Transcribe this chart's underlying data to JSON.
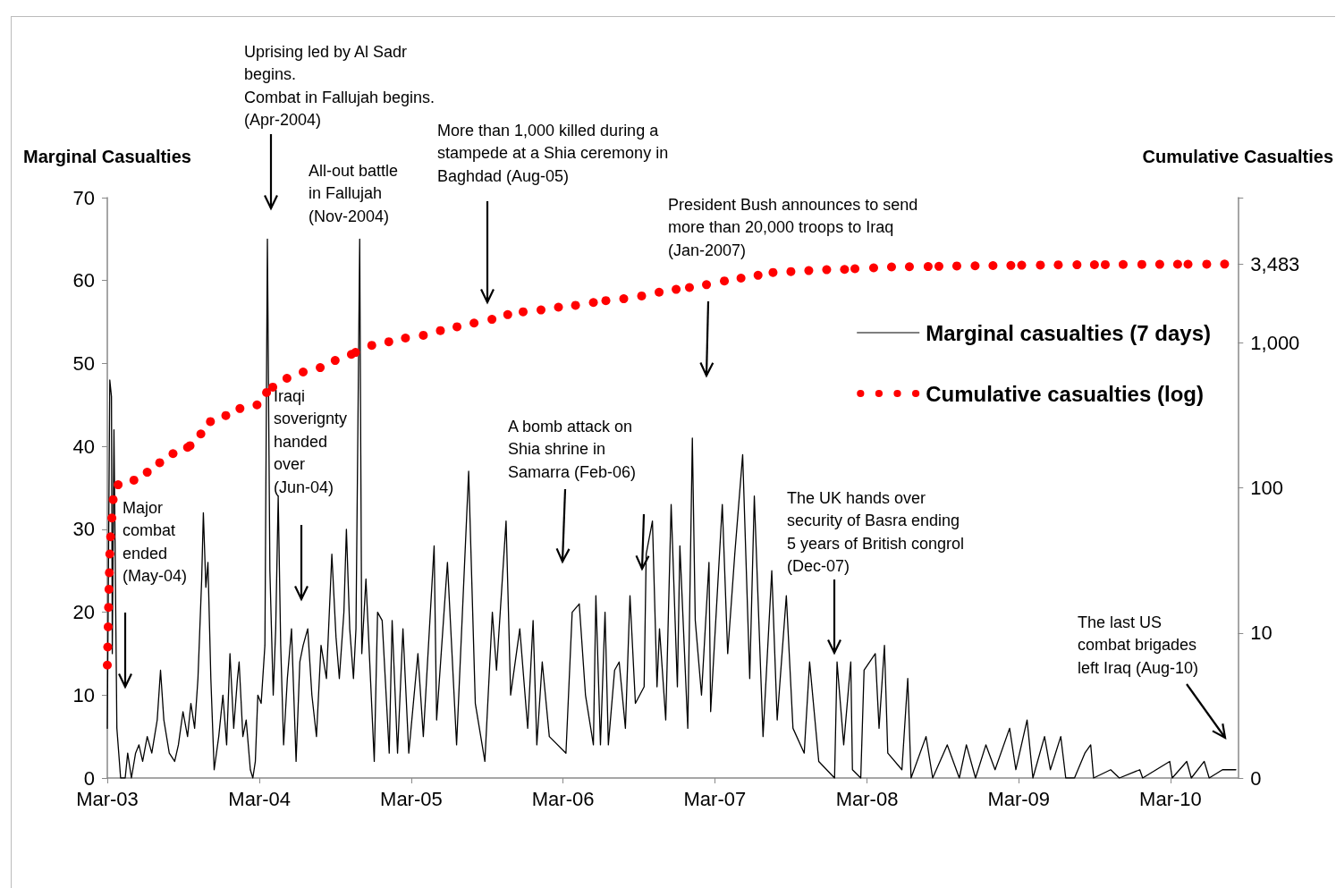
{
  "chart_data": {
    "type": "line",
    "ylabel": "Marginal Casualties",
    "y2label": "Cumulative Casualties",
    "xlim": [
      "2003-03-01",
      "2010-08-10"
    ],
    "xticks": [
      {
        "value": "2003-03-01",
        "label": "Mar-03"
      },
      {
        "value": "2004-03-01",
        "label": "Mar-04"
      },
      {
        "value": "2005-03-01",
        "label": "Mar-05"
      },
      {
        "value": "2006-03-01",
        "label": "Mar-06"
      },
      {
        "value": "2007-03-01",
        "label": "Mar-07"
      },
      {
        "value": "2008-03-01",
        "label": "Mar-08"
      },
      {
        "value": "2009-03-01",
        "label": "Mar-09"
      },
      {
        "value": "2010-03-01",
        "label": "Mar-10"
      }
    ],
    "ylim": [
      0,
      70
    ],
    "yticks": [
      0,
      10,
      20,
      30,
      40,
      50,
      60,
      70
    ],
    "y2lim": [
      0,
      10000
    ],
    "y2ticks": [
      0,
      10,
      100,
      {
        "value": 1000,
        "label": "1,000"
      },
      {
        "value": 3483,
        "label": "3,483"
      },
      {
        "value": 10000,
        "label": null
      }
    ],
    "log": "y2",
    "grid": false,
    "legend": "right",
    "line_style": "solid",
    "series": [
      {
        "name": "Marginal casualties (7 days)",
        "color": "#000000",
        "marker": "none",
        "x": [
          "2003-03-01",
          "2003-03-07",
          "2003-03-11",
          "2003-03-13",
          "2003-03-17",
          "2003-03-24",
          "2003-04-02",
          "2003-04-13",
          "2003-04-19",
          "2003-04-28",
          "2003-05-08",
          "2003-05-16",
          "2003-05-25",
          "2003-06-05",
          "2003-06-16",
          "2003-06-29",
          "2003-07-07",
          "2003-07-15",
          "2003-07-28",
          "2003-08-10",
          "2003-08-19",
          "2003-08-30",
          "2003-09-10",
          "2003-09-18",
          "2003-09-27",
          "2003-10-05",
          "2003-10-14",
          "2003-10-18",
          "2003-10-24",
          "2003-10-29",
          "2003-11-05",
          "2003-11-13",
          "2003-11-24",
          "2003-12-04",
          "2003-12-13",
          "2003-12-21",
          "2003-12-30",
          "2004-01-08",
          "2004-01-12",
          "2004-01-21",
          "2004-01-29",
          "2004-02-08",
          "2004-02-14",
          "2004-02-20",
          "2004-02-26",
          "2004-03-05",
          "2004-03-14",
          "2004-03-20",
          "2004-03-26",
          "2004-04-03",
          "2004-04-09",
          "2004-04-15",
          "2004-04-21",
          "2004-04-28",
          "2004-05-07",
          "2004-05-17",
          "2004-05-28",
          "2004-06-06",
          "2004-06-14",
          "2004-06-25",
          "2004-07-05",
          "2004-07-16",
          "2004-07-27",
          "2004-08-09",
          "2004-08-22",
          "2004-09-01",
          "2004-09-09",
          "2004-09-20",
          "2004-09-26",
          "2004-10-04",
          "2004-10-13",
          "2004-10-19",
          "2004-10-28",
          "2004-11-02",
          "2004-11-12",
          "2004-12-02",
          "2004-12-10",
          "2004-12-21",
          "2005-01-07",
          "2005-01-14",
          "2005-01-27",
          "2005-02-09",
          "2005-02-23",
          "2005-03-17",
          "2005-03-30",
          "2005-04-25",
          "2005-05-01",
          "2005-05-27",
          "2005-06-18",
          "2005-07-17",
          "2005-08-02",
          "2005-08-25",
          "2005-09-12",
          "2005-09-22",
          "2005-10-15",
          "2005-10-26",
          "2005-11-17",
          "2005-12-06",
          "2005-12-19",
          "2005-12-28",
          "2006-01-10",
          "2006-01-27",
          "2006-03-08",
          "2006-03-23",
          "2006-04-09",
          "2006-04-24",
          "2006-05-13",
          "2006-05-19",
          "2006-05-30",
          "2006-06-10",
          "2006-06-18",
          "2006-07-03",
          "2006-07-14",
          "2006-07-29",
          "2006-08-09",
          "2006-08-22",
          "2006-09-12",
          "2006-09-17",
          "2006-10-02",
          "2006-10-13",
          "2006-10-19",
          "2006-11-03",
          "2006-11-16",
          "2006-12-01",
          "2006-12-07",
          "2006-12-26",
          "2007-01-06",
          "2007-01-13",
          "2007-01-28",
          "2007-02-15",
          "2007-02-19",
          "2007-03-19",
          "2007-04-01",
          "2007-04-18",
          "2007-05-07",
          "2007-05-24",
          "2007-06-04",
          "2007-06-25",
          "2007-07-16",
          "2007-07-29",
          "2007-08-20",
          "2007-09-05",
          "2007-10-02",
          "2007-10-15",
          "2007-11-06",
          "2007-12-14",
          "2007-12-20",
          "2008-01-05",
          "2008-01-22",
          "2008-01-26",
          "2008-02-15",
          "2008-02-23",
          "2008-03-21",
          "2008-03-30",
          "2008-04-12",
          "2008-04-20",
          "2008-05-24",
          "2008-06-07",
          "2008-06-15",
          "2008-07-21",
          "2008-08-06",
          "2008-09-10",
          "2008-10-09",
          "2008-10-26",
          "2008-11-17",
          "2008-12-12",
          "2009-01-03",
          "2009-02-07",
          "2009-02-22",
          "2009-03-21",
          "2009-04-04",
          "2009-05-02",
          "2009-05-16",
          "2009-06-10",
          "2009-06-22",
          "2009-07-13",
          "2009-08-07",
          "2009-08-21",
          "2009-08-28",
          "2009-10-08",
          "2009-10-29",
          "2009-12-17",
          "2009-12-24",
          "2010-02-27",
          "2010-03-05",
          "2010-04-09",
          "2010-04-20",
          "2010-05-21",
          "2010-06-02",
          "2010-07-04",
          "2010-08-05"
        ],
        "values": [
          6,
          48,
          46,
          15,
          42,
          6,
          0,
          0,
          3,
          0,
          3,
          4,
          2,
          5,
          3,
          7,
          13,
          7,
          3,
          2,
          4,
          8,
          5,
          9,
          6,
          12,
          24,
          32,
          23,
          26,
          12,
          1,
          5,
          10,
          4,
          15,
          6,
          12,
          14,
          5,
          7,
          1,
          0,
          2,
          10,
          9,
          16,
          65,
          25,
          10,
          18,
          34,
          16,
          4,
          12,
          18,
          2,
          14,
          16,
          18,
          10,
          5,
          16,
          12,
          27,
          17,
          12,
          20,
          30,
          18,
          12,
          18,
          65,
          15,
          24,
          2,
          20,
          19,
          3,
          19,
          3,
          18,
          3,
          15,
          5,
          28,
          7,
          26,
          4,
          37,
          9,
          2,
          20,
          13,
          31,
          10,
          18,
          6,
          19,
          4,
          14,
          5,
          3,
          20,
          21,
          10,
          4,
          22,
          4,
          20,
          4,
          13,
          14,
          6,
          22,
          9,
          11,
          27,
          31,
          11,
          18,
          7,
          33,
          11,
          28,
          6,
          41,
          19,
          10,
          26,
          8,
          33,
          15,
          27,
          39,
          12,
          34,
          5,
          25,
          7,
          22,
          6,
          3,
          14,
          2,
          0,
          14,
          4,
          14,
          1,
          0,
          13,
          15,
          6,
          16,
          3,
          1,
          12,
          0,
          5,
          0,
          4,
          0,
          4,
          0,
          4,
          1,
          6,
          1,
          7,
          0,
          5,
          1,
          5,
          0,
          0,
          3,
          4,
          0,
          1,
          0,
          1,
          0,
          2,
          0,
          2,
          0,
          2,
          0,
          1,
          1
        ]
      },
      {
        "name": "Cumulative casualties (log)",
        "type": "scatter",
        "axis": "y2",
        "color": "#ff0000",
        "marker": "circle",
        "x": [
          "2003-03-01",
          "2003-03-02",
          "2003-03-03",
          "2003-03-04",
          "2003-03-05",
          "2003-03-06",
          "2003-03-07",
          "2003-03-09",
          "2003-03-12",
          "2003-03-15",
          "2003-03-27",
          "2003-05-04",
          "2003-06-05",
          "2003-07-05",
          "2003-08-06",
          "2003-09-10",
          "2003-09-16",
          "2003-10-12",
          "2003-11-04",
          "2003-12-11",
          "2004-01-14",
          "2004-02-24",
          "2004-03-18",
          "2004-04-02",
          "2004-05-06",
          "2004-06-14",
          "2004-07-25",
          "2004-08-30",
          "2004-10-08",
          "2004-10-18",
          "2004-11-26",
          "2005-01-06",
          "2005-02-15",
          "2005-03-30",
          "2005-05-10",
          "2005-06-19",
          "2005-07-30",
          "2005-09-11",
          "2005-10-19",
          "2005-11-25",
          "2006-01-07",
          "2006-02-18",
          "2006-03-31",
          "2006-05-13",
          "2006-06-12",
          "2006-07-25",
          "2006-09-06",
          "2006-10-18",
          "2006-11-28",
          "2006-12-30",
          "2007-02-09",
          "2007-03-24",
          "2007-05-03",
          "2007-06-13",
          "2007-07-19",
          "2007-08-31",
          "2007-10-13",
          "2007-11-25",
          "2008-01-07",
          "2008-02-01",
          "2008-03-17",
          "2008-04-29",
          "2008-06-11",
          "2008-07-26",
          "2008-08-21",
          "2008-10-03",
          "2008-11-16",
          "2008-12-29",
          "2009-02-10",
          "2009-03-08",
          "2009-04-22",
          "2009-06-04",
          "2009-07-19",
          "2009-08-30",
          "2009-09-25",
          "2009-11-07",
          "2009-12-22",
          "2010-02-03",
          "2010-03-18",
          "2010-04-12",
          "2010-05-27",
          "2010-07-09"
        ],
        "values": [
          6,
          8,
          11,
          15,
          20,
          26,
          35,
          46,
          62,
          83,
          105,
          113,
          128,
          149,
          172,
          190,
          195,
          235,
          286,
          315,
          352,
          373,
          454,
          494,
          569,
          628,
          674,
          755,
          832,
          857,
          959,
          1015,
          1077,
          1126,
          1213,
          1288,
          1366,
          1449,
          1562,
          1633,
          1682,
          1758,
          1811,
          1894,
          1950,
          2010,
          2102,
          2230,
          2331,
          2403,
          2513,
          2667,
          2789,
          2915,
          3050,
          3093,
          3140,
          3186,
          3200,
          3236,
          3284,
          3330,
          3340,
          3350,
          3360,
          3380,
          3390,
          3400,
          3410,
          3420,
          3430,
          3440,
          3445,
          3450,
          3455,
          3460,
          3465,
          3470,
          3473,
          3476,
          3480,
          3483
        ]
      }
    ],
    "annotations": [
      "Major\ncombat\nended\n(May-04)",
      "Uprising led by Al Sadr\nbegins.\nCombat in Fallujah begins.\n(Apr-2004)",
      "All-out battle\nin Fallujah\n(Nov-2004)",
      "Iraqi\nsoverignty\nhanded\nover\n(Jun-04)",
      "More than 1,000 killed during a\nstampede at a Shia ceremony in\nBaghdad (Aug-05)",
      "President Bush announces to send\nmore than 20,000 troops to Iraq\n(Jan-2007)",
      "A bomb attack on\nShia shrine in\nSamarra (Feb-06)",
      "The UK hands over\nsecurity of Basra ending\n5 years of British congrol\n(Dec-07)",
      "The last US\ncombat brigades\nleft Iraq (Aug-10)"
    ]
  }
}
